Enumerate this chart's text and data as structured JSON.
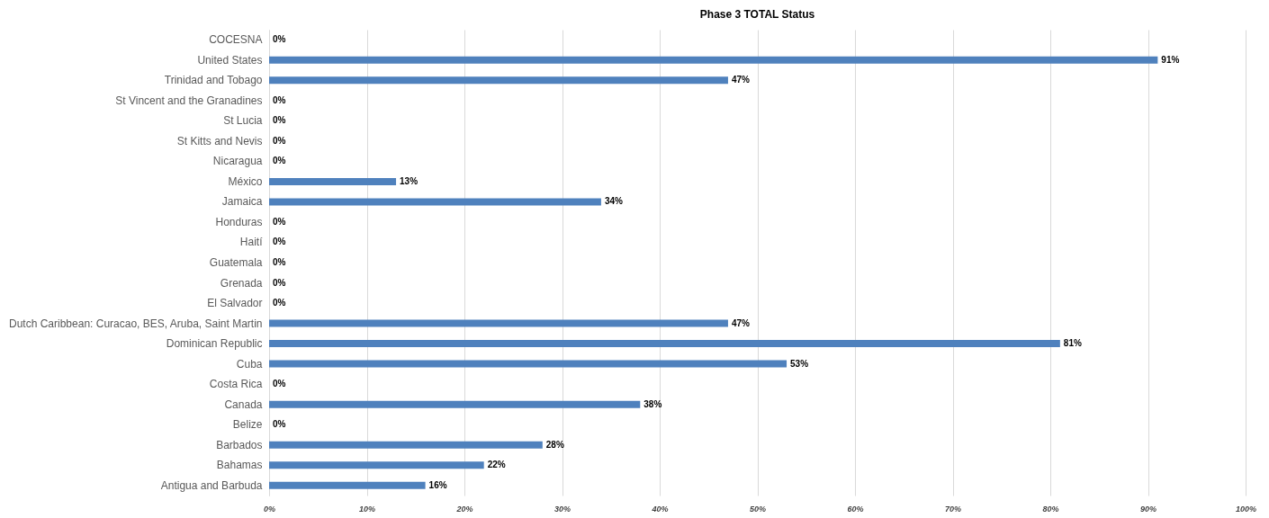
{
  "chart_data": {
    "type": "bar",
    "orientation": "horizontal",
    "title": "Phase 3 TOTAL Status",
    "categories": [
      "COCESNA",
      "United States",
      "Trinidad and Tobago",
      "St Vincent and the Granadines",
      "St Lucia",
      "St Kitts and Nevis",
      "Nicaragua",
      "México",
      "Jamaica",
      "Honduras",
      "Haití",
      "Guatemala",
      "Grenada",
      "El Salvador",
      "Dutch Caribbean: Curacao, BES, Aruba, Saint Martin",
      "Dominican Republic",
      "Cuba",
      "Costa Rica",
      "Canada",
      "Belize",
      "Barbados",
      "Bahamas",
      "Antigua and Barbuda"
    ],
    "values": [
      0,
      91,
      47,
      0,
      0,
      0,
      0,
      13,
      34,
      0,
      0,
      0,
      0,
      0,
      47,
      81,
      53,
      0,
      38,
      0,
      28,
      22,
      16
    ],
    "value_labels": [
      "0%",
      "91%",
      "47%",
      "0%",
      "0%",
      "0%",
      "0%",
      "13%",
      "34%",
      "0%",
      "0%",
      "0%",
      "0%",
      "0%",
      "47%",
      "81%",
      "53%",
      "0%",
      "38%",
      "0%",
      "28%",
      "22%",
      "16%"
    ],
    "color": "#4f81bd",
    "xlim": [
      0,
      100
    ],
    "xticks": [
      {
        "value": 0,
        "label": "0%"
      },
      {
        "value": 10,
        "label": "10%"
      },
      {
        "value": 20,
        "label": "20%"
      },
      {
        "value": 30,
        "label": "30%"
      },
      {
        "value": 40,
        "label": "40%"
      },
      {
        "value": 50,
        "label": "50%"
      },
      {
        "value": 60,
        "label": "60%"
      },
      {
        "value": 70,
        "label": "70%"
      },
      {
        "value": 80,
        "label": "80%"
      },
      {
        "value": 90,
        "label": "90%"
      },
      {
        "value": 100,
        "label": "100%"
      }
    ],
    "grid": "x"
  }
}
